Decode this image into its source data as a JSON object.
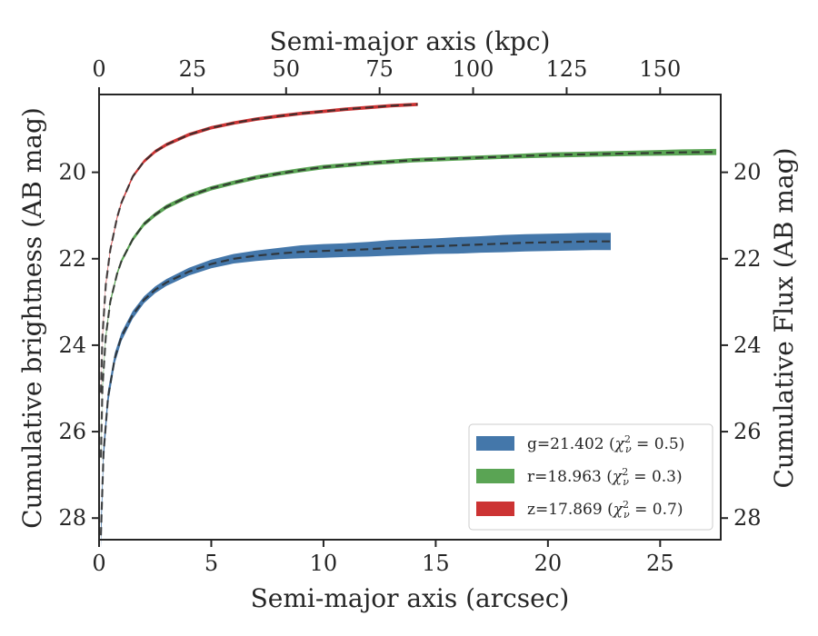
{
  "chart_data": {
    "type": "line",
    "xlabel": "Semi-major axis (arcsec)",
    "x2label": "Semi-major axis (kpc)",
    "ylabel": "Cumulative brightness (AB mag)",
    "y2label": "Cumulative Flux (AB mag)",
    "xlim": [
      0,
      27.7
    ],
    "x2lim": [
      0,
      166.2
    ],
    "ylim": [
      28.5,
      18.2
    ],
    "y_inverted": true,
    "xticks": [
      0,
      5,
      10,
      15,
      20,
      25
    ],
    "x2ticks": [
      0,
      25,
      50,
      75,
      100,
      125,
      150
    ],
    "yticks": [
      20,
      22,
      24,
      26,
      28
    ],
    "legend_position": "lower-right",
    "grid": false,
    "series": [
      {
        "name": "g=21.402 (χ²ν = 0.5)",
        "legend_main": "g=21.402 (",
        "legend_chi": "χ",
        "legend_sup": "2",
        "legend_sub": "ν",
        "legend_tail": " = 0.5)",
        "color": "#4477aa",
        "x": [
          0.08,
          0.2,
          0.4,
          0.7,
          1.0,
          1.5,
          2.0,
          2.5,
          3.0,
          4.0,
          5.0,
          6.0,
          7.0,
          8.0,
          9.0,
          10.0,
          11.0,
          12.0,
          13.0,
          14.0,
          15.0,
          16.0,
          17.0,
          18.0,
          19.0,
          20.0,
          21.0,
          22.0,
          22.8
        ],
        "y": [
          28.4,
          26.5,
          25.2,
          24.3,
          23.8,
          23.3,
          22.95,
          22.72,
          22.55,
          22.3,
          22.12,
          22.0,
          21.93,
          21.88,
          21.84,
          21.82,
          21.8,
          21.78,
          21.75,
          21.73,
          21.71,
          21.69,
          21.67,
          21.65,
          21.63,
          21.62,
          21.61,
          21.6,
          21.6
        ],
        "band": [
          0.28,
          0.2,
          0.16,
          0.12,
          0.1,
          0.09,
          0.08,
          0.08,
          0.08,
          0.09,
          0.1,
          0.11,
          0.12,
          0.13,
          0.15,
          0.16,
          0.16,
          0.17,
          0.18,
          0.18,
          0.18,
          0.19,
          0.19,
          0.2,
          0.2,
          0.2,
          0.2,
          0.2,
          0.2
        ]
      },
      {
        "name": "r=18.963 (χ²ν = 0.3)",
        "legend_main": "r=18.963 (",
        "legend_chi": "χ",
        "legend_sup": "2",
        "legend_sub": "ν",
        "legend_tail": " = 0.3)",
        "color": "#5aa454",
        "x": [
          0.08,
          0.15,
          0.3,
          0.5,
          0.8,
          1.0,
          1.5,
          2.0,
          2.5,
          3.0,
          4.0,
          5.0,
          6.0,
          7.0,
          8.0,
          9.0,
          10.0,
          12.0,
          14.0,
          16.0,
          18.0,
          20.0,
          22.0,
          24.0,
          26.0,
          27.5
        ],
        "y": [
          26.6,
          25.0,
          23.8,
          23.0,
          22.35,
          22.05,
          21.55,
          21.2,
          20.98,
          20.8,
          20.55,
          20.37,
          20.24,
          20.12,
          20.03,
          19.95,
          19.88,
          19.79,
          19.72,
          19.68,
          19.64,
          19.6,
          19.58,
          19.56,
          19.54,
          19.53
        ],
        "band": [
          0.12,
          0.09,
          0.07,
          0.06,
          0.05,
          0.05,
          0.05,
          0.05,
          0.05,
          0.05,
          0.05,
          0.05,
          0.05,
          0.05,
          0.05,
          0.05,
          0.05,
          0.05,
          0.05,
          0.05,
          0.05,
          0.06,
          0.06,
          0.06,
          0.07,
          0.07
        ]
      },
      {
        "name": "z=17.869 (χ²ν = 0.7)",
        "legend_main": "z=17.869 (",
        "legend_chi": "χ",
        "legend_sup": "2",
        "legend_sub": "ν",
        "legend_tail": " = 0.7)",
        "color": "#cc3333",
        "x": [
          0.08,
          0.15,
          0.3,
          0.5,
          0.8,
          1.0,
          1.5,
          2.0,
          2.5,
          3.0,
          4.0,
          5.0,
          6.0,
          7.0,
          8.0,
          9.0,
          10.0,
          11.0,
          12.0,
          13.0,
          14.2
        ],
        "y": [
          25.1,
          23.8,
          22.6,
          21.8,
          21.05,
          20.7,
          20.1,
          19.75,
          19.52,
          19.36,
          19.13,
          18.97,
          18.86,
          18.77,
          18.7,
          18.64,
          18.59,
          18.54,
          18.5,
          18.46,
          18.43
        ],
        "band": [
          0.08,
          0.06,
          0.05,
          0.04,
          0.04,
          0.04,
          0.04,
          0.04,
          0.04,
          0.04,
          0.04,
          0.04,
          0.04,
          0.04,
          0.04,
          0.04,
          0.04,
          0.04,
          0.04,
          0.04,
          0.04
        ]
      }
    ]
  }
}
